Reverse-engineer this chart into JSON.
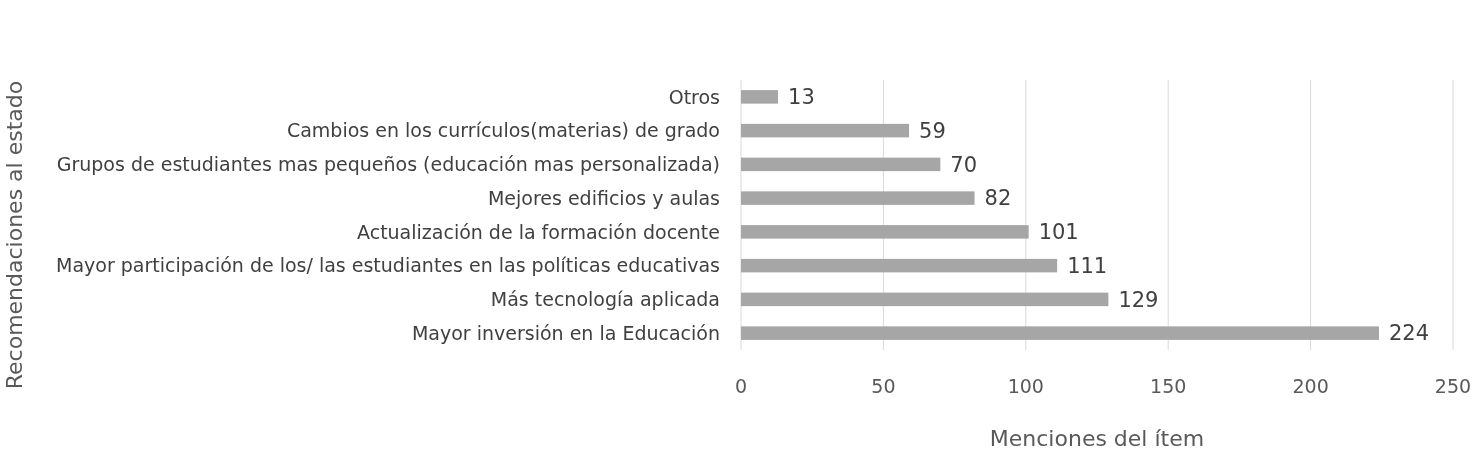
{
  "chart_data": {
    "type": "bar",
    "orientation": "horizontal",
    "xlabel": "Menciones del ítem",
    "ylabel": "Recomendaciones al estado",
    "categories": [
      "Otros",
      "Cambios en los currículos(materias) de grado",
      "Grupos de estudiantes mas pequeños (educación mas personalizada)",
      "Mejores edificios y aulas",
      "Actualización de la formación docente",
      "Mayor participación de los/ las estudiantes en las políticas educativas",
      "Más tecnología aplicada",
      "Mayor inversión en la Educación"
    ],
    "values": [
      13,
      59,
      70,
      82,
      101,
      111,
      129,
      224
    ],
    "color": "#a6a6a6",
    "xlim": [
      0,
      250
    ],
    "xticks": [
      0,
      50,
      100,
      150,
      200,
      250
    ],
    "grid": "x",
    "data_labels": true
  }
}
